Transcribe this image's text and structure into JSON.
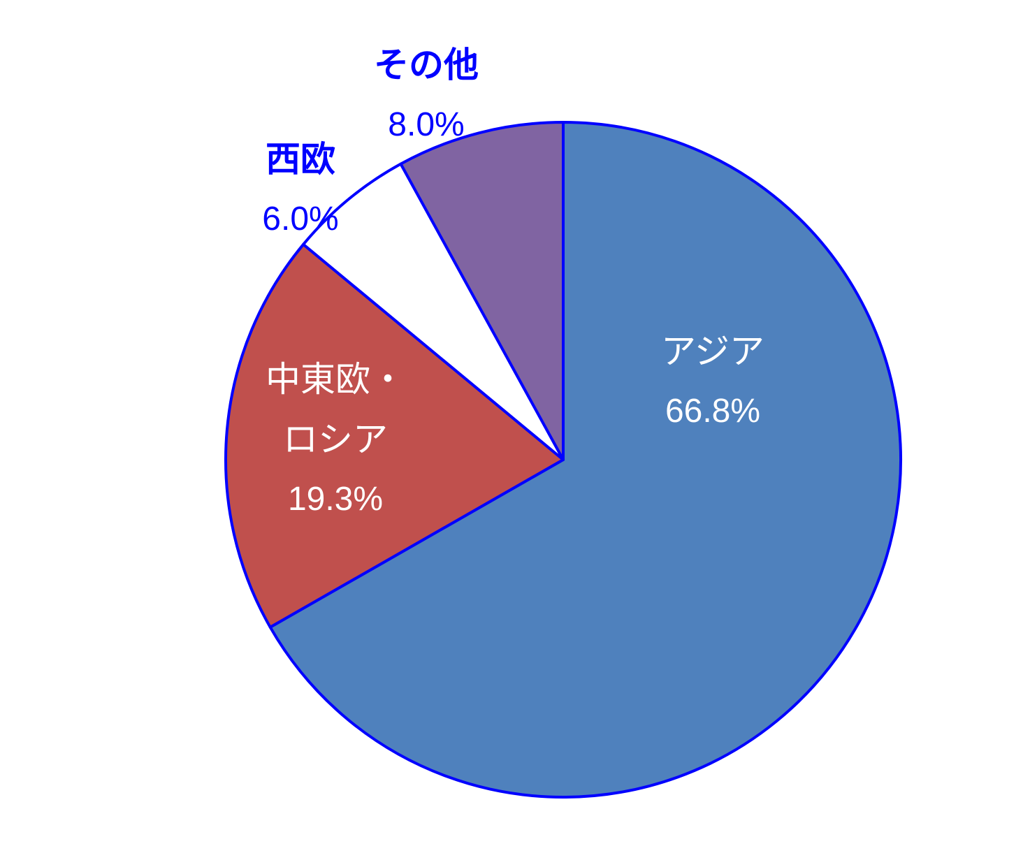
{
  "chart_data": {
    "type": "pie",
    "categories": [
      "アジア",
      "中東欧・ロシア",
      "西欧",
      "その他"
    ],
    "values": [
      66.8,
      19.3,
      6.0,
      8.0
    ],
    "value_labels": [
      "66.8%",
      "19.3%",
      "6.0%",
      "8.0%"
    ],
    "colors": [
      "#4f81bd",
      "#c0504d",
      "#ffffff",
      "#8064a2"
    ],
    "edge_color": "#0000ff"
  }
}
